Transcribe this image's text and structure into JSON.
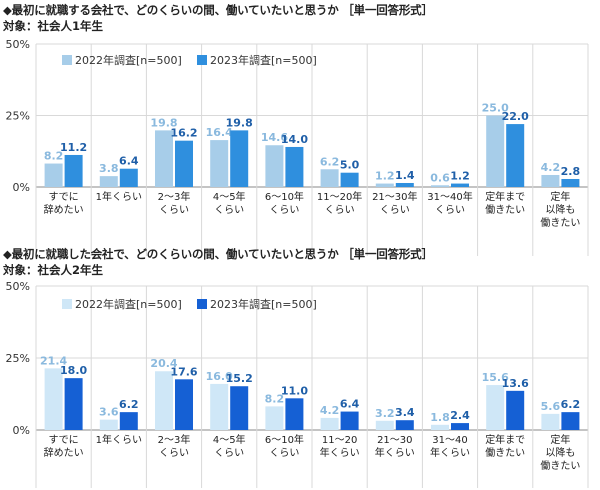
{
  "chart_data": [
    {
      "type": "bar",
      "title": "◆最初に就職する会社で、どのくらいの間、働いていたいと思うか ［単一回答形式］",
      "subtitle": "対象：社会人1年生",
      "categories": [
        "すでに\n辞めたい",
        "1年くらい",
        "2～3年\nくらい",
        "4～5年\nくらい",
        "6～10年\nくらい",
        "11～20年\nくらい",
        "21～30年\nくらい",
        "31～40年\nくらい",
        "定年まで\n働きたい",
        "定年\n以降も\n働きたい"
      ],
      "y_ticks": [
        "0%",
        "25%",
        "50%"
      ],
      "ylim": [
        0,
        50
      ],
      "legend_position": "top",
      "series": [
        {
          "name": "2022年調査[n=500]",
          "color": "#a7cde9",
          "values": [
            8.2,
            3.8,
            19.8,
            16.4,
            14.6,
            6.2,
            1.2,
            0.6,
            25.0,
            4.2
          ]
        },
        {
          "name": "2023年調査[n=500]",
          "color": "#2f8fde",
          "values": [
            11.2,
            6.4,
            16.2,
            19.8,
            14.0,
            5.0,
            1.4,
            1.2,
            22.0,
            2.8
          ]
        }
      ]
    },
    {
      "type": "bar",
      "title": "◆最初に就職した会社で、どのくらいの間、働いていたいと思うか ［単一回答形式］",
      "subtitle": "対象：社会人2年生",
      "categories": [
        "すでに\n辞めたい",
        "1年くらい",
        "2～3年\nくらい",
        "4～5年\nくらい",
        "6～10年\nくらい",
        "11～20\n年くらい",
        "21～30\n年くらい",
        "31～40\n年くらい",
        "定年まで\n働きたい",
        "定年\n以降も\n働きたい"
      ],
      "y_ticks": [
        "0%",
        "25%",
        "50%"
      ],
      "ylim": [
        0,
        50
      ],
      "legend_position": "top",
      "series": [
        {
          "name": "2022年調査[n=500]",
          "color": "#cfe7f7",
          "values": [
            21.4,
            3.6,
            20.4,
            16.0,
            8.2,
            4.2,
            3.2,
            1.8,
            15.6,
            5.6
          ]
        },
        {
          "name": "2023年調査[n=500]",
          "color": "#1560d4",
          "values": [
            18.0,
            6.2,
            17.6,
            15.2,
            11.0,
            6.4,
            3.4,
            2.4,
            13.6,
            6.2
          ]
        }
      ]
    }
  ]
}
